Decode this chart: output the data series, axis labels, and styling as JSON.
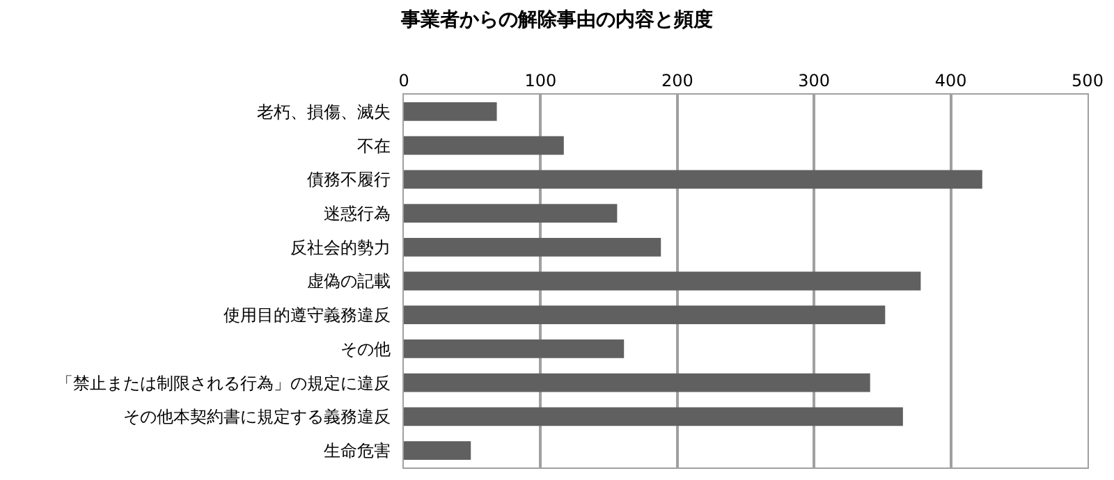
{
  "chart_data": {
    "type": "bar",
    "orientation": "horizontal",
    "title": "事業者からの解除事由の内容と頻度",
    "categories": [
      "老朽、損傷、滅失",
      "不在",
      "債務不履行",
      "迷惑行為",
      "反社会的勢力",
      "虚偽の記載",
      "使用目的遵守義務違反",
      "その他",
      "「禁止または制限される行為」の規定に違反",
      "その他本契約書に規定する義務違反",
      "生命危害"
    ],
    "values": [
      68,
      117,
      423,
      156,
      188,
      378,
      352,
      161,
      341,
      365,
      49
    ],
    "color": "#606060",
    "xlim": [
      0,
      500
    ],
    "xticks": [
      0,
      100,
      200,
      300,
      400,
      500
    ],
    "grid": "x"
  }
}
